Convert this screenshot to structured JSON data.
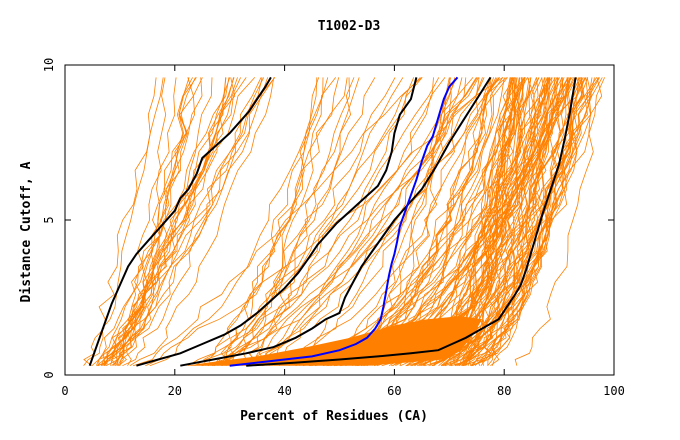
{
  "chart_data": {
    "type": "line",
    "title": "T1002-D3",
    "xlabel": "Percent of Residues (CA)",
    "ylabel": "Distance Cutoff, A",
    "xlim": [
      0,
      100
    ],
    "ylim": [
      0,
      10
    ],
    "xticks": [
      "0",
      "20",
      "40",
      "60",
      "80",
      "100"
    ],
    "yticks": [
      "0",
      "5",
      "10"
    ],
    "grid": false,
    "legend": "none",
    "colors": {
      "models": "#ff8000",
      "reference": "#000000",
      "highlight": "#0000ff"
    },
    "highlight": {
      "x": [
        30,
        35,
        40,
        45,
        50,
        53,
        55,
        56.5,
        57.5,
        58,
        58.5,
        59,
        59.5,
        60,
        60.5,
        61,
        62,
        63,
        64,
        65,
        66,
        67,
        68,
        69,
        70,
        71.5
      ],
      "y": [
        0.3,
        0.4,
        0.5,
        0.6,
        0.8,
        1.0,
        1.2,
        1.5,
        1.8,
        2.2,
        2.7,
        3.2,
        3.6,
        3.9,
        4.3,
        4.8,
        5.3,
        5.8,
        6.3,
        6.9,
        7.4,
        7.7,
        8.3,
        8.9,
        9.3,
        9.6
      ]
    },
    "reference_series": [
      {
        "x": [
          4.5,
          5.5,
          6.5,
          7.5,
          8.5,
          10,
          11.5,
          13,
          15,
          17.5,
          20,
          21,
          22.5,
          24,
          25,
          27.5,
          30,
          32,
          33.5,
          35,
          36.5,
          37.5
        ],
        "y": [
          0.3,
          0.8,
          1.3,
          1.8,
          2.3,
          2.9,
          3.5,
          3.9,
          4.3,
          4.8,
          5.3,
          5.7,
          6.0,
          6.5,
          7.0,
          7.4,
          7.8,
          8.2,
          8.5,
          8.9,
          9.3,
          9.6
        ]
      },
      {
        "x": [
          13,
          17,
          21,
          25,
          29,
          32,
          35,
          37.5,
          40,
          42.5,
          44.5,
          46,
          47.5,
          49.5,
          52,
          54.5,
          57,
          58.5,
          59.5,
          60,
          61,
          63,
          64
        ],
        "y": [
          0.3,
          0.5,
          0.7,
          1.0,
          1.3,
          1.6,
          2.0,
          2.4,
          2.8,
          3.3,
          3.8,
          4.2,
          4.5,
          4.9,
          5.3,
          5.7,
          6.1,
          6.6,
          7.2,
          7.8,
          8.4,
          8.9,
          9.6
        ]
      },
      {
        "x": [
          21,
          27,
          33,
          38,
          42,
          45,
          47.5,
          50,
          51,
          52.5,
          54,
          56,
          58,
          60,
          62.5,
          65,
          67.5,
          70,
          72.5,
          75,
          77.5
        ],
        "y": [
          0.3,
          0.5,
          0.7,
          0.9,
          1.2,
          1.5,
          1.8,
          2.0,
          2.5,
          3.0,
          3.5,
          4.0,
          4.5,
          5.0,
          5.5,
          6.0,
          6.7,
          7.5,
          8.2,
          8.9,
          9.6
        ]
      },
      {
        "x": [
          33,
          42,
          50,
          57,
          63,
          68,
          70.5,
          73,
          76,
          79,
          80.5,
          82,
          83,
          84,
          85,
          86,
          87,
          88.5,
          90,
          91,
          92,
          93
        ],
        "y": [
          0.3,
          0.4,
          0.5,
          0.6,
          0.7,
          0.8,
          1.0,
          1.2,
          1.5,
          1.8,
          2.2,
          2.6,
          2.9,
          3.4,
          4.0,
          4.6,
          5.2,
          6.0,
          6.8,
          7.6,
          8.5,
          9.6
        ]
      }
    ]
  }
}
